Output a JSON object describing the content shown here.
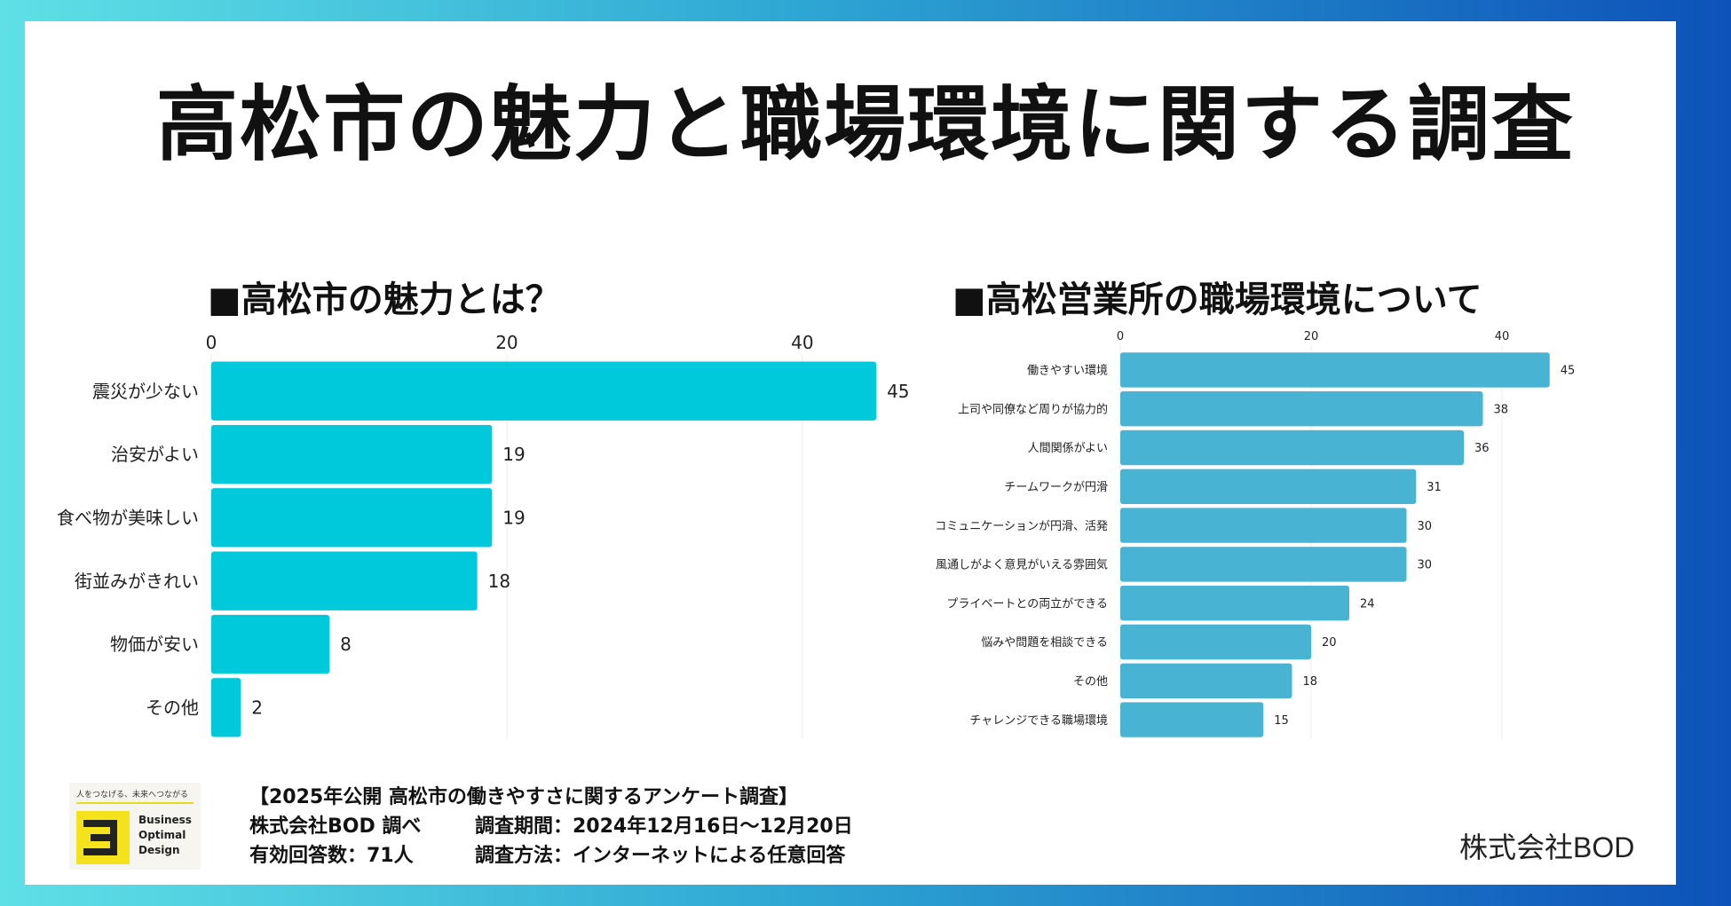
{
  "title": "高松市の魅力と職場環境に関する調査",
  "accent_colors": {
    "left_bar": "#00c9dc",
    "right_bar": "#48b3d3",
    "background_start": "#5fe0e6",
    "background_end": "#0d52b9"
  },
  "chart_data": [
    {
      "type": "bar",
      "orientation": "horizontal",
      "title": "■高松市の魅力とは？",
      "categories": [
        "震災が少ない",
        "治安がよい",
        "食べ物が美味しい",
        "街並みがきれい",
        "物価が安い",
        "その他"
      ],
      "values": [
        45,
        19,
        19,
        18,
        8,
        2
      ],
      "xticks": [
        0,
        20,
        40
      ],
      "xlim": [
        0,
        48
      ],
      "xlabel": "",
      "ylabel": "",
      "grid": true
    },
    {
      "type": "bar",
      "orientation": "horizontal",
      "title": "■高松営業所の職場環境について",
      "categories": [
        "働きやすい環境",
        "上司や同僚など周りが協力的",
        "人間関係がよい",
        "チームワークが円滑",
        "コミュニケーションが円滑、活発",
        "風通しがよく意見がいえる雰囲気",
        "プライベートとの両立ができる",
        "悩みや問題を相談できる",
        "その他",
        "チャレンジできる職場環境"
      ],
      "values": [
        45,
        38,
        36,
        31,
        30,
        30,
        24,
        20,
        18,
        15
      ],
      "xticks": [
        0,
        20,
        40
      ],
      "xlim": [
        0,
        48
      ],
      "xlabel": "",
      "ylabel": "",
      "grid": true
    }
  ],
  "footer": {
    "survey_name": "【2025年公開 高松市の働きやすさに関するアンケート調査】",
    "research_by": "株式会社BOD 調べ",
    "period": "調査期間：2024年12月16日〜12月20日",
    "responses": "有効回答数：71人",
    "method": "調査方法：インターネットによる任意回答"
  },
  "company": "株式会社BOD",
  "logo": {
    "tagline": "人をつなげる、未来へつながる",
    "lines": [
      "Business",
      "Optimal",
      "Design"
    ]
  }
}
